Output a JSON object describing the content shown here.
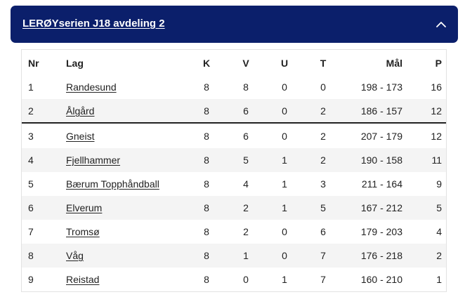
{
  "header": {
    "title": "LERØYserien J18 avdeling 2"
  },
  "table": {
    "columns": {
      "nr": "Nr",
      "lag": "Lag",
      "k": "K",
      "v": "V",
      "u": "U",
      "t": "T",
      "mal": "Mål",
      "p": "P"
    },
    "rows": [
      {
        "nr": "1",
        "lag": "Randesund",
        "k": "8",
        "v": "8",
        "u": "0",
        "t": "0",
        "mal": "198 - 173",
        "p": "16"
      },
      {
        "nr": "2",
        "lag": "Ålgård",
        "k": "8",
        "v": "6",
        "u": "0",
        "t": "2",
        "mal": "186 - 157",
        "p": "12"
      },
      {
        "nr": "3",
        "lag": "Gneist",
        "k": "8",
        "v": "6",
        "u": "0",
        "t": "2",
        "mal": "207 - 179",
        "p": "12"
      },
      {
        "nr": "4",
        "lag": "Fjellhammer",
        "k": "8",
        "v": "5",
        "u": "1",
        "t": "2",
        "mal": "190 - 158",
        "p": "11"
      },
      {
        "nr": "5",
        "lag": "Bærum Topphåndball",
        "k": "8",
        "v": "4",
        "u": "1",
        "t": "3",
        "mal": "211 - 164",
        "p": "9"
      },
      {
        "nr": "6",
        "lag": "Elverum",
        "k": "8",
        "v": "2",
        "u": "1",
        "t": "5",
        "mal": "167 - 212",
        "p": "5"
      },
      {
        "nr": "7",
        "lag": "Tromsø",
        "k": "8",
        "v": "2",
        "u": "0",
        "t": "6",
        "mal": "179 - 203",
        "p": "4"
      },
      {
        "nr": "8",
        "lag": "Våg",
        "k": "8",
        "v": "1",
        "u": "0",
        "t": "7",
        "mal": "176 - 218",
        "p": "2"
      },
      {
        "nr": "9",
        "lag": "Reistad",
        "k": "8",
        "v": "0",
        "u": "1",
        "t": "7",
        "mal": "160 - 210",
        "p": "1"
      }
    ]
  },
  "colors": {
    "header_bg": "#0b1f6b",
    "header_text": "#ffffff",
    "row_shade": "#f4f4f4",
    "divider": "#222222"
  },
  "icons": {
    "collapse": "chevron-up-icon"
  }
}
